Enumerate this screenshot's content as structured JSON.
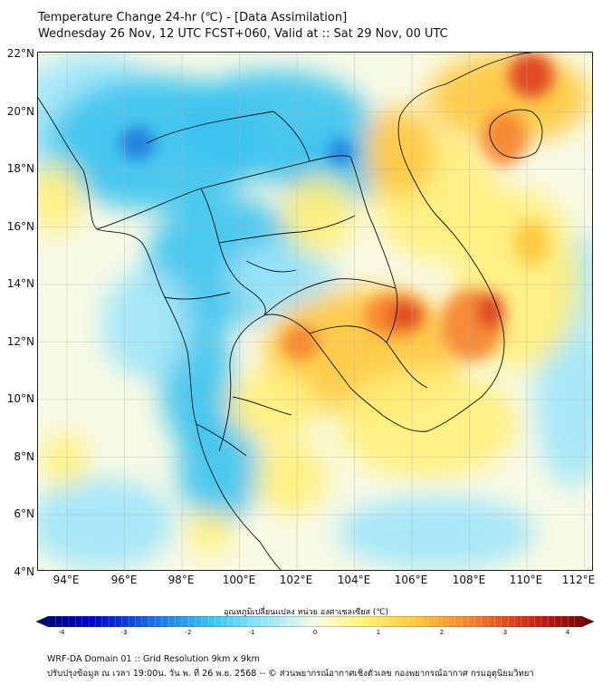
{
  "header": {
    "title_line1": "Temperature Change 24-hr (℃) - [Data Assimilation]",
    "title_line2": "Wednesday 26 Nov, 12 UTC FCST+060, Valid at :: Sat 29 Nov, 00 UTC"
  },
  "map": {
    "lat_labels": [
      "22°N",
      "20°N",
      "18°N",
      "16°N",
      "14°N",
      "12°N",
      "10°N",
      "8°N",
      "6°N",
      "4°N"
    ],
    "lon_labels": [
      "94°E",
      "96°E",
      "98°E",
      "100°E",
      "102°E",
      "104°E",
      "106°E",
      "108°E",
      "110°E",
      "112°E"
    ],
    "colors": {
      "cold_strong": "#1e78dc",
      "cold": "#3cc3f0",
      "cool": "#a0e6fa",
      "neutral": "#f8fae6",
      "warm": "#fff07a",
      "warmer": "#ffc83c",
      "hot": "#f5822d",
      "hotter": "#dc3c1e"
    }
  },
  "colorbar": {
    "title": "อุณหภูมิเปลี่ยนแปลง หน่วย องศาเซลเซียส (℃)",
    "ticks": [
      "-4",
      "-3",
      "-2",
      "-1",
      "0",
      "1",
      "2",
      "3",
      "4"
    ],
    "min": -4,
    "max": 4
  },
  "footer": {
    "line1": "WRF-DA Domain 01 :: Grid Resolution 9km x 9km",
    "line2": "ปรับปรุงข้อมูล ณ เวลา 19:00น. วัน พ. ที่ 26 พ.ย. 2568 -- © ส่วนพยากรณ์อากาศเชิงตัวเลข กองพยากรณ์อากาศ กรมอุตุนิยมวิทยา"
  }
}
